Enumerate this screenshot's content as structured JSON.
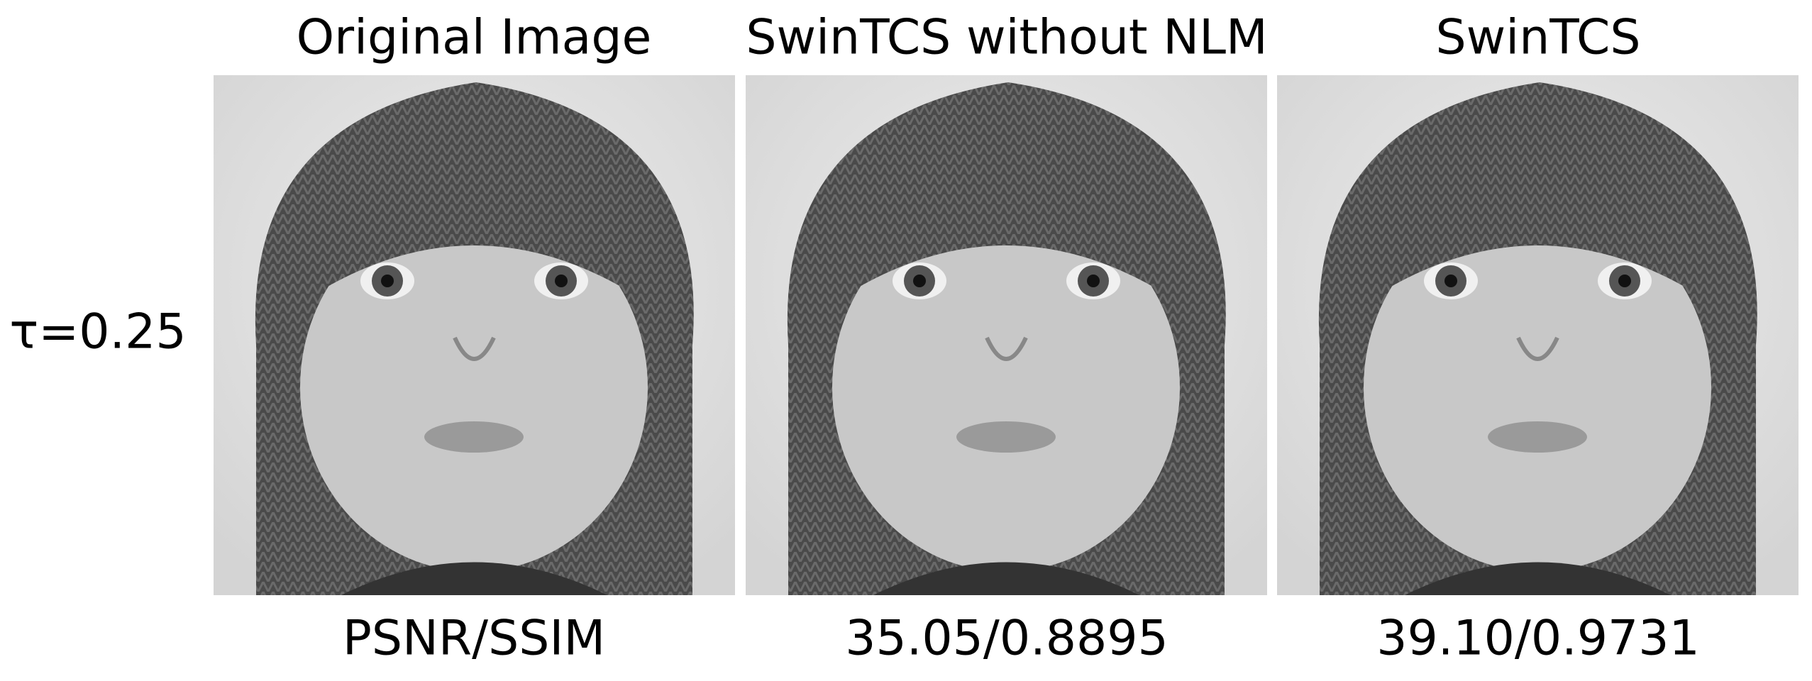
{
  "row_label": "τ=0.25",
  "columns": [
    {
      "title": "Original Image",
      "metric": "PSNR/SSIM"
    },
    {
      "title": "SwinTCS without NLM",
      "metric": "35.05/0.8895"
    },
    {
      "title": "SwinTCS",
      "metric": "39.10/0.9731"
    }
  ]
}
